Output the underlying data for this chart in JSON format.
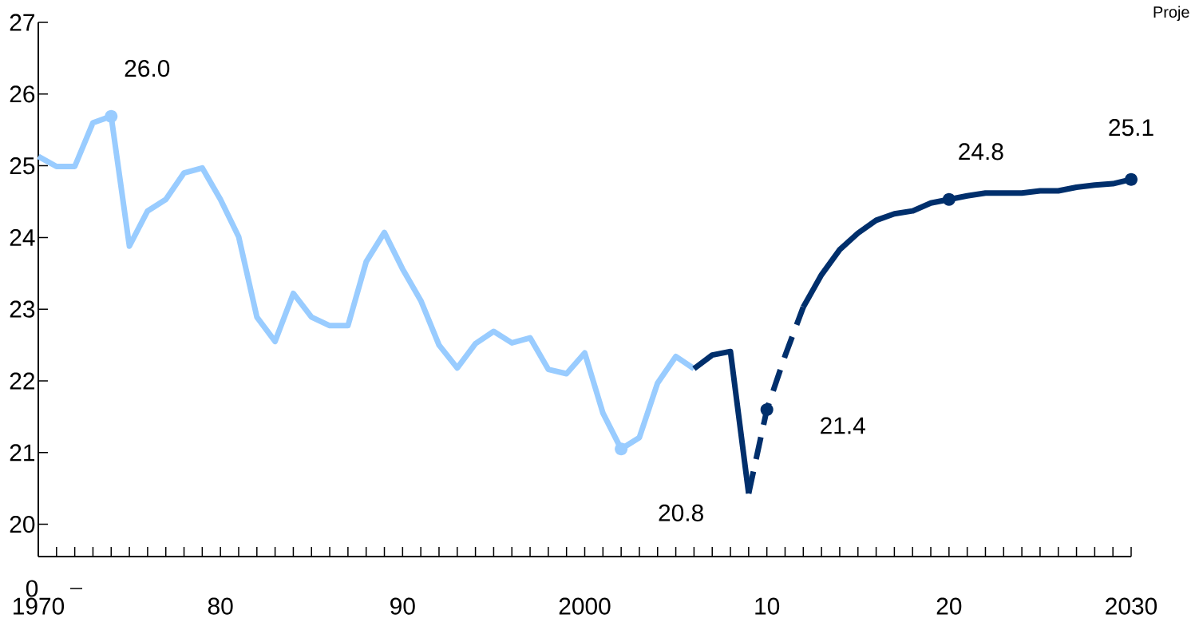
{
  "chart_data": {
    "type": "line",
    "xlim": [
      1970,
      2030
    ],
    "ylim": [
      19.55,
      27
    ],
    "xticks": [
      {
        "value": 1970,
        "label": "1970"
      },
      {
        "value": 1971,
        "label": null
      },
      {
        "value": 1972,
        "label": null
      },
      {
        "value": 1973,
        "label": null
      },
      {
        "value": 1974,
        "label": null
      },
      {
        "value": 1975,
        "label": null
      },
      {
        "value": 1976,
        "label": null
      },
      {
        "value": 1977,
        "label": null
      },
      {
        "value": 1978,
        "label": null
      },
      {
        "value": 1979,
        "label": null
      },
      {
        "value": 1980,
        "label": "80"
      },
      {
        "value": 1981,
        "label": null
      },
      {
        "value": 1982,
        "label": null
      },
      {
        "value": 1983,
        "label": null
      },
      {
        "value": 1984,
        "label": null
      },
      {
        "value": 1985,
        "label": null
      },
      {
        "value": 1986,
        "label": null
      },
      {
        "value": 1987,
        "label": null
      },
      {
        "value": 1988,
        "label": null
      },
      {
        "value": 1989,
        "label": null
      },
      {
        "value": 1990,
        "label": "90"
      },
      {
        "value": 1991,
        "label": null
      },
      {
        "value": 1992,
        "label": null
      },
      {
        "value": 1993,
        "label": null
      },
      {
        "value": 1994,
        "label": null
      },
      {
        "value": 1995,
        "label": null
      },
      {
        "value": 1996,
        "label": null
      },
      {
        "value": 1997,
        "label": null
      },
      {
        "value": 1998,
        "label": null
      },
      {
        "value": 1999,
        "label": null
      },
      {
        "value": 2000,
        "label": "2000"
      },
      {
        "value": 2001,
        "label": null
      },
      {
        "value": 2002,
        "label": null
      },
      {
        "value": 2003,
        "label": null
      },
      {
        "value": 2004,
        "label": null
      },
      {
        "value": 2005,
        "label": null
      },
      {
        "value": 2006,
        "label": null
      },
      {
        "value": 2007,
        "label": null
      },
      {
        "value": 2008,
        "label": null
      },
      {
        "value": 2009,
        "label": null
      },
      {
        "value": 2010,
        "label": "10"
      },
      {
        "value": 2011,
        "label": null
      },
      {
        "value": 2012,
        "label": null
      },
      {
        "value": 2013,
        "label": null
      },
      {
        "value": 2014,
        "label": null
      },
      {
        "value": 2015,
        "label": null
      },
      {
        "value": 2016,
        "label": null
      },
      {
        "value": 2017,
        "label": null
      },
      {
        "value": 2018,
        "label": null
      },
      {
        "value": 2019,
        "label": null
      },
      {
        "value": 2020,
        "label": "20"
      },
      {
        "value": 2021,
        "label": null
      },
      {
        "value": 2022,
        "label": null
      },
      {
        "value": 2023,
        "label": null
      },
      {
        "value": 2024,
        "label": null
      },
      {
        "value": 2025,
        "label": null
      },
      {
        "value": 2026,
        "label": null
      },
      {
        "value": 2027,
        "label": null
      },
      {
        "value": 2028,
        "label": null
      },
      {
        "value": 2029,
        "label": null
      },
      {
        "value": 2030,
        "label": "2030"
      }
    ],
    "yticks": [
      20,
      21,
      22,
      23,
      24,
      25,
      26,
      27
    ],
    "series": [
      {
        "color": "#99ccff",
        "line_style": "solid",
        "x": [
          1970,
          1971,
          1972,
          1973,
          1974,
          1975,
          1976,
          1977,
          1978,
          1979,
          1980,
          1981,
          1982,
          1983,
          1984,
          1985,
          1986,
          1987,
          1988,
          1989,
          1990,
          1991,
          1992,
          1993,
          1994,
          1995,
          1996,
          1997,
          1998,
          1999,
          2000,
          2001,
          2002,
          2003,
          2004,
          2005,
          2006
        ],
        "values": [
          25.13,
          24.99,
          24.99,
          25.6,
          25.69,
          23.88,
          24.37,
          24.53,
          24.9,
          24.97,
          24.53,
          24.01,
          22.89,
          22.55,
          23.22,
          22.89,
          22.77,
          22.77,
          23.66,
          24.07,
          23.56,
          23.12,
          22.5,
          22.18,
          22.52,
          22.69,
          22.53,
          22.6,
          22.16,
          22.1,
          22.39,
          21.55,
          21.05,
          21.21,
          21.97,
          22.34,
          22.17
        ]
      },
      {
        "color": "#002f6c",
        "line_style": "solid",
        "x": [
          2006,
          2007,
          2008,
          2009
        ],
        "values": [
          22.17,
          22.36,
          22.41,
          20.43
        ]
      },
      {
        "color": "#002f6c",
        "line_style": "dashed",
        "x": [
          2009,
          2010,
          2011,
          2012
        ],
        "values": [
          20.43,
          21.6,
          22.35,
          23.03
        ]
      },
      {
        "color": "#002f6c",
        "line_style": "solid",
        "x": [
          2012,
          2013,
          2014,
          2015,
          2016,
          2017,
          2018,
          2019,
          2020,
          2021,
          2022,
          2023,
          2024,
          2025,
          2026,
          2027,
          2028,
          2029,
          2030
        ],
        "values": [
          23.03,
          23.48,
          23.83,
          24.06,
          24.24,
          24.33,
          24.37,
          24.48,
          24.53,
          24.58,
          24.62,
          24.62,
          24.62,
          24.65,
          24.65,
          24.7,
          24.73,
          24.75,
          24.81
        ]
      }
    ],
    "annotations": [
      {
        "text": "26.0",
        "x": 1974,
        "y": 25.69
      },
      {
        "text": "20.8",
        "x": 2002,
        "y": 21.05
      },
      {
        "text": "21.4",
        "x": 2010,
        "y": 21.6
      },
      {
        "text": "24.8",
        "x": 2020,
        "y": 24.53
      },
      {
        "text": "25.1",
        "x": 2030,
        "y": 24.81
      },
      "0",
      "Proje"
    ]
  }
}
